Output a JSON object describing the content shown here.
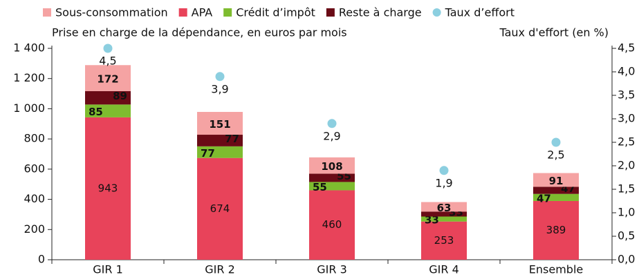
{
  "chart_data": {
    "type": "bar",
    "y_label": "Prise en charge de la dépendance, en euros par mois",
    "y2_label": "Taux d'effort (en %)",
    "categories": [
      "GIR 1",
      "GIR 2",
      "GIR 3",
      "GIR 4",
      "Ensemble"
    ],
    "stacked": true,
    "series": [
      {
        "name": "APA",
        "color": "#e8435a",
        "values": [
          943,
          674,
          460,
          253,
          389
        ]
      },
      {
        "name": "Crédit d’impôt",
        "color": "#7ebc2f",
        "values": [
          85,
          77,
          55,
          33,
          47
        ]
      },
      {
        "name": "Reste à charge",
        "color": "#6a0b16",
        "values": [
          89,
          77,
          55,
          33,
          47
        ]
      },
      {
        "name": "Sous-consommation",
        "color": "#f5a3a3",
        "values": [
          172,
          151,
          108,
          63,
          91
        ]
      },
      {
        "name": "Taux d’effort",
        "color": "#8ccfe0",
        "axis": "y2",
        "type": "scatter",
        "values": [
          4.5,
          3.9,
          2.9,
          1.9,
          2.5
        ],
        "value_labels": [
          "4,5",
          "3,9",
          "2,9",
          "1,9",
          "2,5"
        ]
      }
    ],
    "ylim": [
      0,
      1400
    ],
    "yticks": [
      0,
      200,
      400,
      600,
      800,
      {
        "value": 1000,
        "label": "1 000"
      },
      {
        "value": 1200,
        "label": "1 200"
      },
      {
        "value": 1400,
        "label": "1 400"
      }
    ],
    "y2lim": [
      0,
      4.5
    ],
    "y2ticks": [
      {
        "value": 0,
        "label": "0,0"
      },
      {
        "value": 0.5,
        "label": "0,5"
      },
      {
        "value": 1,
        "label": "1,0"
      },
      {
        "value": 1.5,
        "label": "1,5"
      },
      {
        "value": 2,
        "label": "2,0"
      },
      {
        "value": 2.5,
        "label": "2,5"
      },
      {
        "value": 3,
        "label": "3,0"
      },
      {
        "value": 3.5,
        "label": "3,5"
      },
      {
        "value": 4,
        "label": "4,0"
      },
      {
        "value": 4.5,
        "label": "4,5"
      }
    ],
    "legend": "top"
  }
}
